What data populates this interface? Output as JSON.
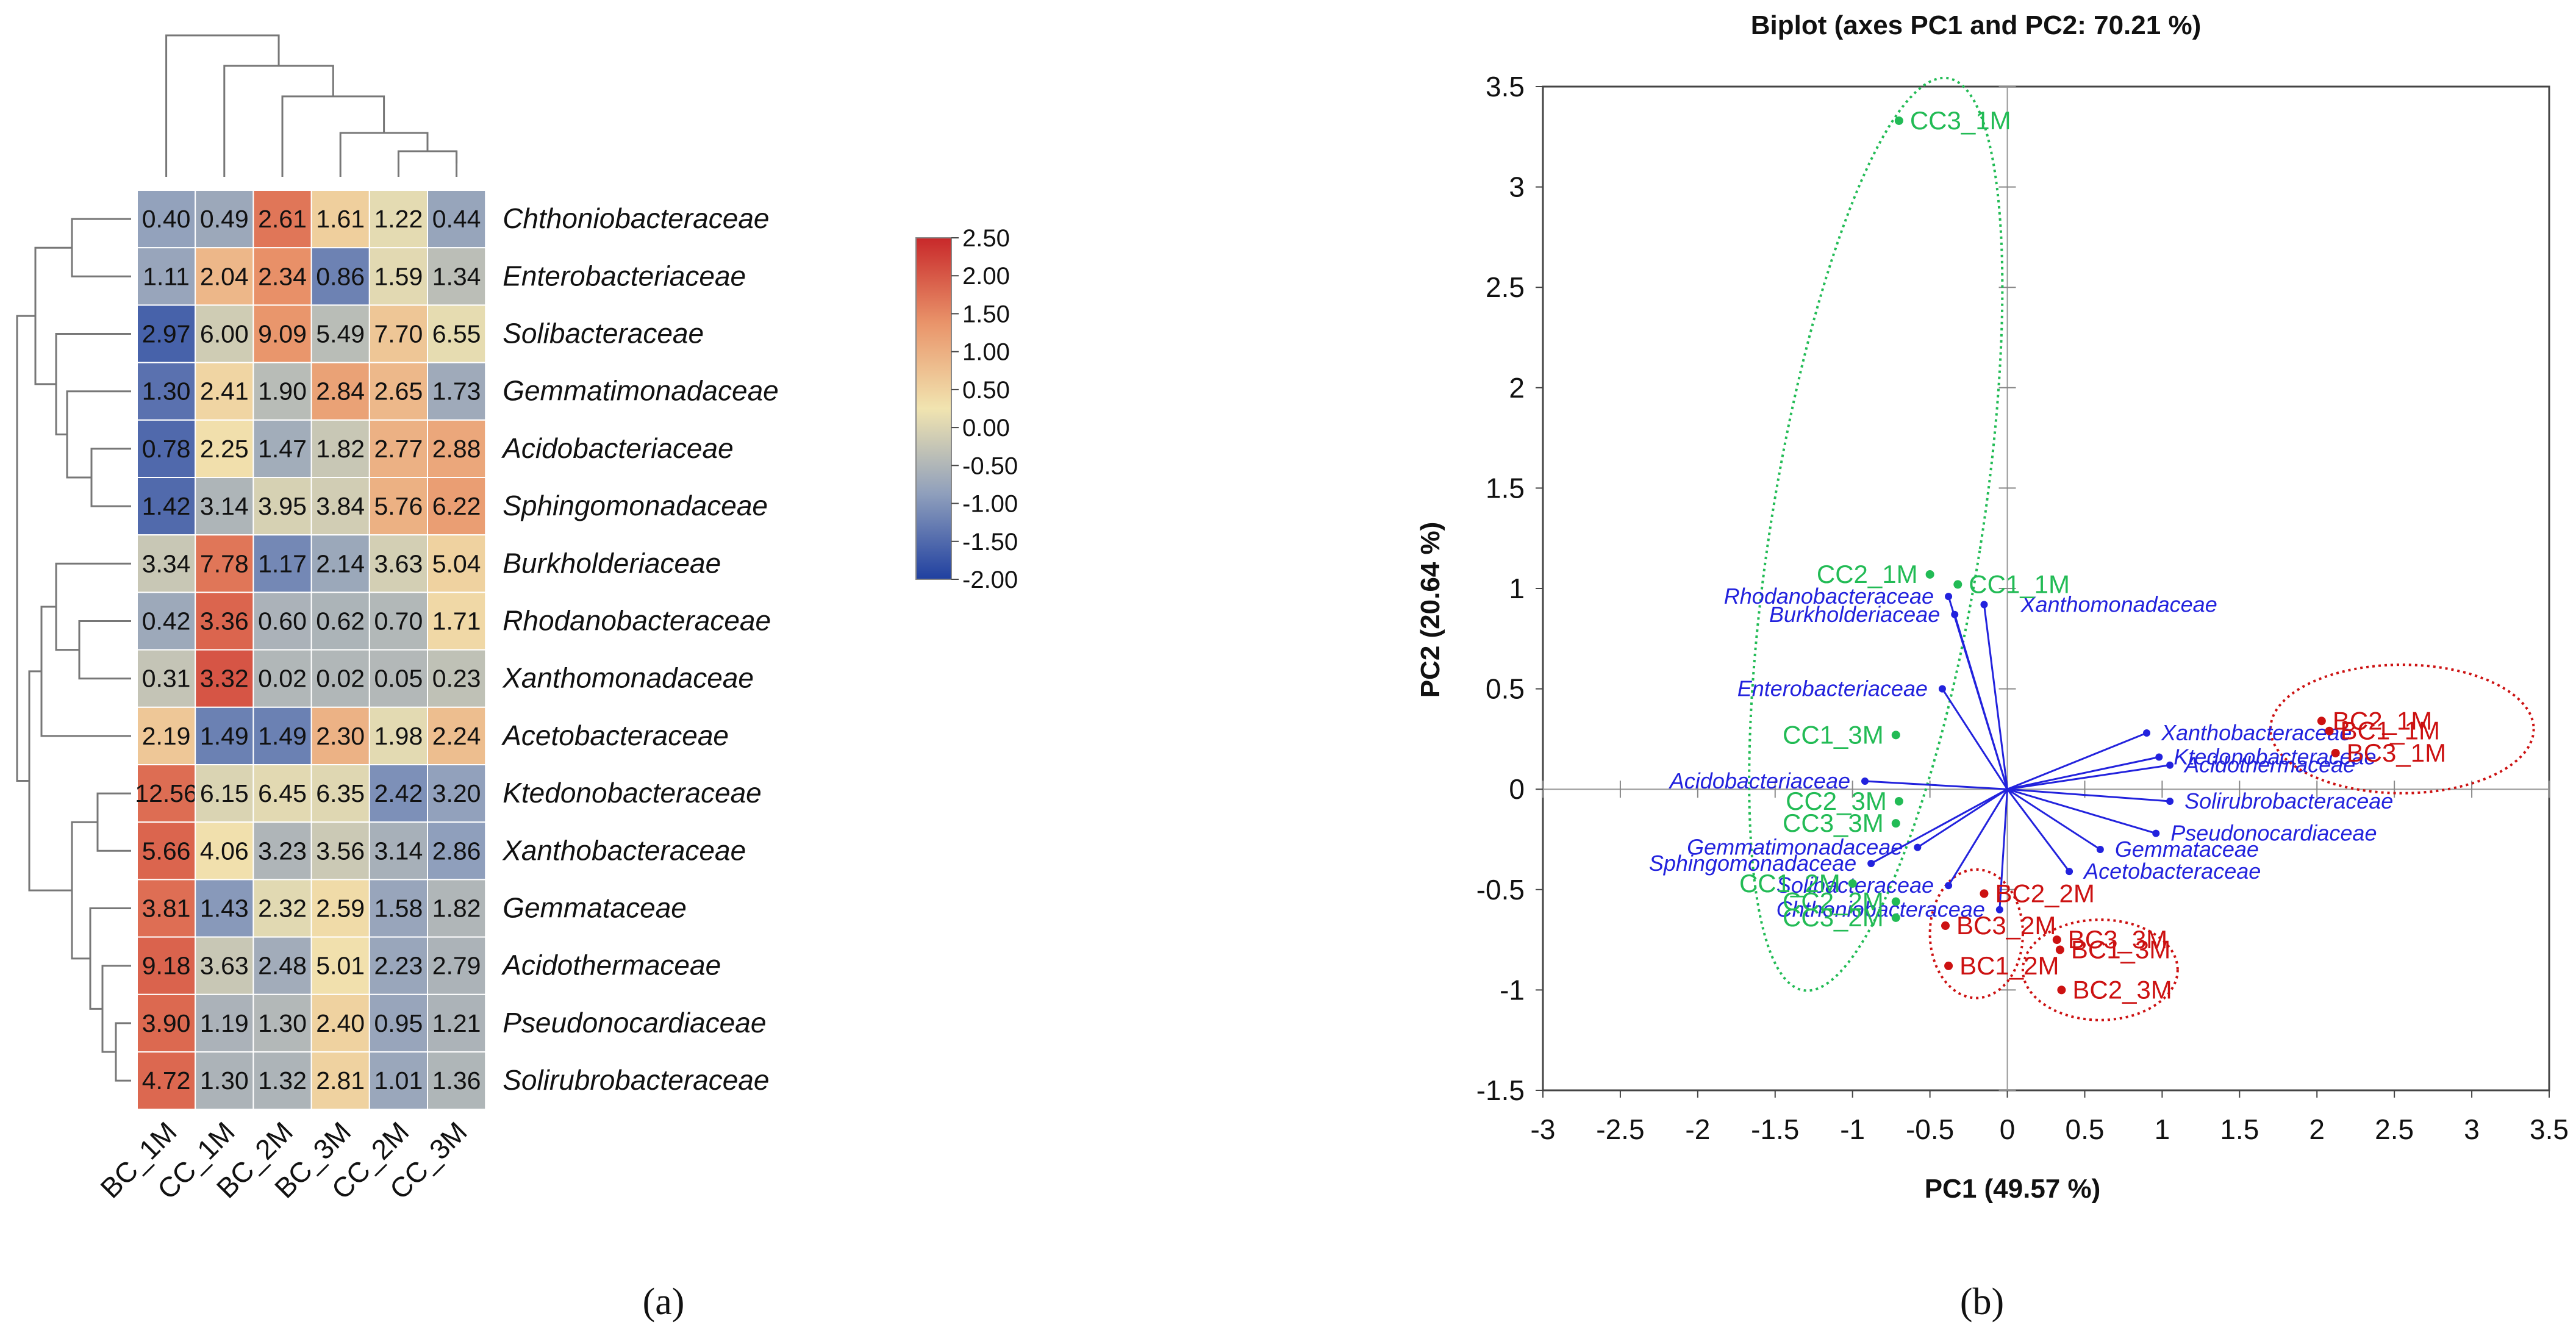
{
  "chart_data": [
    {
      "type": "heatmap",
      "panel_label": "(a)",
      "columns": [
        "BC_1M",
        "CC_1M",
        "BC_2M",
        "BC_3M",
        "CC_2M",
        "CC_3M"
      ],
      "rows": [
        "Chthoniobacteraceae",
        "Enterobacteriaceae",
        "Solibacteraceae",
        "Gemmatimonadaceae",
        "Acidobacteriaceae",
        "Sphingomonadaceae",
        "Burkholderiaceae",
        "Rhodanobacteraceae",
        "Xanthomonadaceae",
        "Acetobacteraceae",
        "Ktedonobacteraceae",
        "Xanthobacteraceae",
        "Gemmataceae",
        "Acidothermaceae",
        "Pseudonocardiaceae",
        "Solirubrobacteraceae"
      ],
      "values": [
        [
          "0.40",
          "0.49",
          "2.61",
          "1.61",
          "1.22",
          "0.44"
        ],
        [
          "1.11",
          "2.04",
          "2.34",
          "0.86",
          "1.59",
          "1.34"
        ],
        [
          "2.97",
          "6.00",
          "9.09",
          "5.49",
          "7.70",
          "6.55"
        ],
        [
          "1.30",
          "2.41",
          "1.90",
          "2.84",
          "2.65",
          "1.73"
        ],
        [
          "0.78",
          "2.25",
          "1.47",
          "1.82",
          "2.77",
          "2.88"
        ],
        [
          "1.42",
          "3.14",
          "3.95",
          "3.84",
          "5.76",
          "6.22"
        ],
        [
          "3.34",
          "7.78",
          "1.17",
          "2.14",
          "3.63",
          "5.04"
        ],
        [
          "0.42",
          "3.36",
          "0.60",
          "0.62",
          "0.70",
          "1.71"
        ],
        [
          "0.31",
          "3.32",
          "0.02",
          "0.02",
          "0.05",
          "0.23"
        ],
        [
          "2.19",
          "1.49",
          "1.49",
          "2.30",
          "1.98",
          "2.24"
        ],
        [
          "12.56",
          "6.15",
          "6.45",
          "6.35",
          "2.42",
          "3.20"
        ],
        [
          "5.66",
          "4.06",
          "3.23",
          "3.56",
          "3.14",
          "2.86"
        ],
        [
          "3.81",
          "1.43",
          "2.32",
          "2.59",
          "1.58",
          "1.82"
        ],
        [
          "9.18",
          "3.63",
          "2.48",
          "5.01",
          "2.23",
          "2.79"
        ],
        [
          "3.90",
          "1.19",
          "1.30",
          "2.40",
          "0.95",
          "1.21"
        ],
        [
          "4.72",
          "1.30",
          "1.32",
          "2.81",
          "1.01",
          "1.36"
        ]
      ],
      "colorbar": {
        "range": [
          -2.0,
          2.5
        ],
        "ticks": [
          "2.50",
          "2.00",
          "1.50",
          "1.00",
          "0.50",
          "0.00",
          "-0.50",
          "-1.00",
          "-1.50",
          "-2.00"
        ],
        "colors": [
          "#2040a0",
          "#8f9fbc",
          "#f1e4b0",
          "#e9946a",
          "#c8282a"
        ]
      },
      "dendrogram": true
    },
    {
      "type": "scatter",
      "panel_label": "(b)",
      "title": "Biplot (axes PC1 and PC2: 70.21 %)",
      "xlabel": "PC1 (49.57 %)",
      "ylabel": "PC2 (20.64 %)",
      "xlim": [
        -3,
        3.5
      ],
      "ylim": [
        -1.5,
        3.5
      ],
      "xticks": [
        "-3",
        "-2.5",
        "-2",
        "-1.5",
        "-1",
        "-0.5",
        "0",
        "0.5",
        "1",
        "1.5",
        "2",
        "2.5",
        "3",
        "3.5"
      ],
      "yticks": [
        "3.5",
        "3",
        "2.5",
        "2",
        "1.5",
        "1",
        "0.5",
        "0",
        "-0.5",
        "-1",
        "-1.5"
      ],
      "observations": [
        {
          "label": "CC3_1M",
          "x": -0.7,
          "y": 3.33,
          "color": "#22bb55"
        },
        {
          "label": "CC2_1M",
          "x": -0.5,
          "y": 1.07,
          "color": "#22bb55"
        },
        {
          "label": "CC1_1M",
          "x": -0.32,
          "y": 1.02,
          "color": "#22bb55"
        },
        {
          "label": "CC1_3M",
          "x": -0.72,
          "y": 0.27,
          "color": "#22bb55"
        },
        {
          "label": "CC2_3M",
          "x": -0.7,
          "y": -0.06,
          "color": "#22bb55"
        },
        {
          "label": "CC3_3M",
          "x": -0.72,
          "y": -0.17,
          "color": "#22bb55"
        },
        {
          "label": "CC1_2M",
          "x": -1.0,
          "y": -0.47,
          "color": "#22bb55"
        },
        {
          "label": "CC2_2M",
          "x": -0.72,
          "y": -0.56,
          "color": "#22bb55"
        },
        {
          "label": "CC3_2M",
          "x": -0.72,
          "y": -0.64,
          "color": "#22bb55"
        },
        {
          "label": "BC2_1M",
          "x": 2.03,
          "y": 0.34,
          "color": "#cc1111"
        },
        {
          "label": "BC1_1M",
          "x": 2.08,
          "y": 0.29,
          "color": "#cc1111"
        },
        {
          "label": "BC3_1M",
          "x": 2.12,
          "y": 0.18,
          "color": "#cc1111"
        },
        {
          "label": "BC2_2M",
          "x": -0.15,
          "y": -0.52,
          "color": "#cc1111"
        },
        {
          "label": "BC3_2M",
          "x": -0.4,
          "y": -0.68,
          "color": "#cc1111"
        },
        {
          "label": "BC1_2M",
          "x": -0.38,
          "y": -0.88,
          "color": "#cc1111"
        },
        {
          "label": "BC3_3M",
          "x": 0.32,
          "y": -0.75,
          "color": "#cc1111"
        },
        {
          "label": "BC1_3M",
          "x": 0.34,
          "y": -0.8,
          "color": "#cc1111"
        },
        {
          "label": "BC2_3M",
          "x": 0.35,
          "y": -1.0,
          "color": "#cc1111"
        }
      ],
      "variables": [
        {
          "label": "Rhodanobacteraceae",
          "x": -0.38,
          "y": 0.96
        },
        {
          "label": "Burkholderiaceae",
          "x": -0.34,
          "y": 0.87
        },
        {
          "label": "Xanthomonadaceae",
          "x": -0.15,
          "y": 0.92
        },
        {
          "label": "Enterobacteriaceae",
          "x": -0.42,
          "y": 0.5
        },
        {
          "label": "Acidobacteriaceae",
          "x": -0.92,
          "y": 0.04
        },
        {
          "label": "Sphingomonadaceae",
          "x": -0.88,
          "y": -0.37
        },
        {
          "label": "Gemmatimonadaceae",
          "x": -0.58,
          "y": -0.29
        },
        {
          "label": "Solibacteraceae",
          "x": -0.38,
          "y": -0.48
        },
        {
          "label": "Chthoniobacteraceae",
          "x": -0.05,
          "y": -0.6
        },
        {
          "label": "Acetobacteraceae",
          "x": 0.4,
          "y": -0.41
        },
        {
          "label": "Xanthobacteraceae",
          "x": 0.9,
          "y": 0.28
        },
        {
          "label": "Ktedonobacteraceae",
          "x": 0.98,
          "y": 0.16
        },
        {
          "label": "Acidothermaceae",
          "x": 1.05,
          "y": 0.12
        },
        {
          "label": "Solirubrobacteraceae",
          "x": 1.05,
          "y": -0.06
        },
        {
          "label": "Pseudonocardiaceae",
          "x": 0.96,
          "y": -0.22
        },
        {
          "label": "Gemmataceae",
          "x": 0.6,
          "y": -0.3
        }
      ],
      "ellipses": [
        {
          "group": "CC",
          "color": "#22bb55",
          "cx": -0.85,
          "cy": 1.27,
          "rx": 0.68,
          "ry": 2.3,
          "angle_deg": 9
        },
        {
          "group": "BC_1M",
          "color": "#cc1111",
          "cx": 2.55,
          "cy": 0.3,
          "rx": 0.85,
          "ry": 0.32,
          "angle_deg": 0
        },
        {
          "group": "BC_2M",
          "color": "#cc1111",
          "cx": -0.2,
          "cy": -0.72,
          "rx": 0.3,
          "ry": 0.32,
          "angle_deg": 0
        },
        {
          "group": "BC_3M",
          "color": "#cc1111",
          "cx": 0.6,
          "cy": -0.9,
          "rx": 0.5,
          "ry": 0.25,
          "angle_deg": 0
        }
      ]
    }
  ]
}
